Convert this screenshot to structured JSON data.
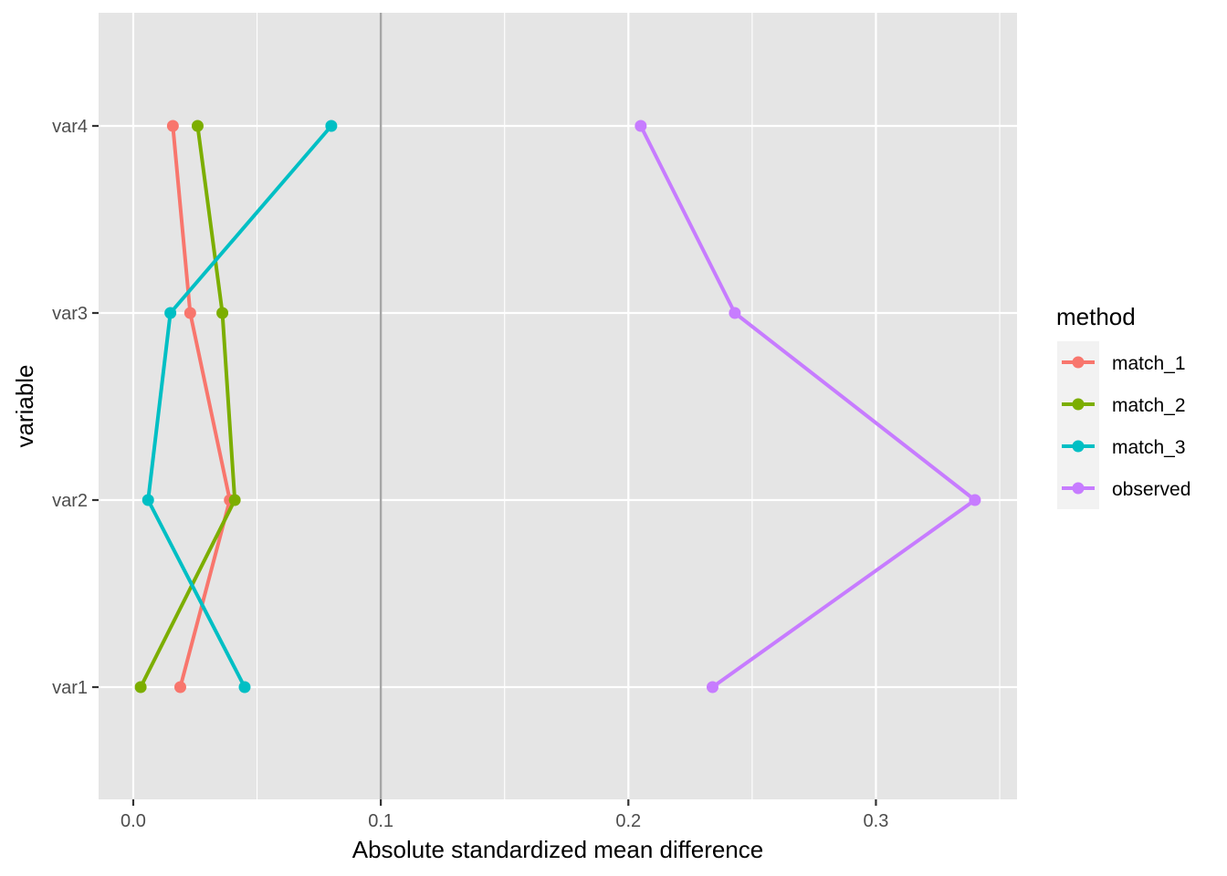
{
  "chart_data": {
    "type": "line",
    "xlabel": "Absolute standardized mean difference",
    "ylabel": "variable",
    "xlim": [
      -0.014,
      0.357
    ],
    "x_ticks": [
      0.0,
      0.1,
      0.2,
      0.3
    ],
    "x_tick_labels": [
      "0.0",
      "0.1",
      "0.2",
      "0.3"
    ],
    "x_minor_ticks": [
      0.05,
      0.15,
      0.25,
      0.35
    ],
    "categories": [
      "var1",
      "var2",
      "var3",
      "var4"
    ],
    "reference_line": {
      "x": 0.1,
      "color": "#a6a6a6"
    },
    "grid": true,
    "panel_background": "#e5e5e5",
    "legend": {
      "title": "method",
      "placement": "right"
    },
    "series": [
      {
        "name": "match_1",
        "color": "#F8766D",
        "values": [
          0.019,
          0.039,
          0.023,
          0.016
        ]
      },
      {
        "name": "match_2",
        "color": "#7CAE00",
        "values": [
          0.003,
          0.041,
          0.036,
          0.026
        ]
      },
      {
        "name": "match_3",
        "color": "#00BFC4",
        "values": [
          0.045,
          0.006,
          0.015,
          0.08
        ]
      },
      {
        "name": "observed",
        "color": "#C77CFF",
        "values": [
          0.234,
          0.34,
          0.243,
          0.205
        ]
      }
    ]
  }
}
